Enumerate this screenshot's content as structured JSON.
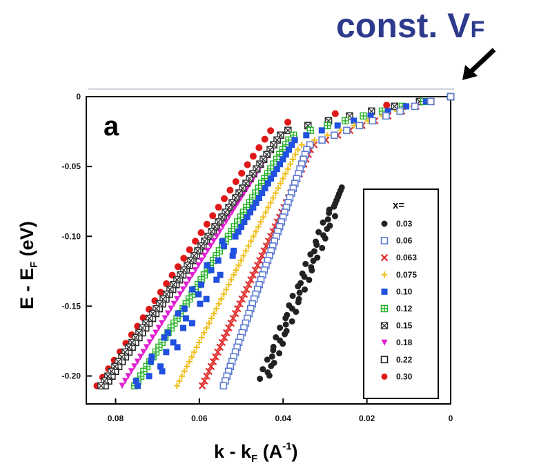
{
  "banner": {
    "text": "const. V",
    "subscript": "F"
  },
  "chart_data": {
    "type": "scatter",
    "panel_label": "a",
    "xlabel": "k - k",
    "xlabel_sub": "F",
    "xlabel_unit_open": " (A",
    "xlabel_sup": "-1",
    "xlabel_unit_close": ")",
    "ylabel": "E - E",
    "ylabel_sub": "F",
    "ylabel_unit": " (eV)",
    "xlim": [
      0.087,
      0
    ],
    "ylim": [
      -0.22,
      0.0
    ],
    "x_ticks": [
      0.08,
      0.06,
      0.04,
      0.02,
      0
    ],
    "x_tick_labels": [
      "0.08",
      "0.06",
      "0.04",
      "0.02",
      "0"
    ],
    "y_ticks": [
      0,
      -0.05,
      -0.1,
      -0.15,
      -0.2
    ],
    "y_tick_labels": [
      "0",
      "-0.05",
      "-0.10",
      "-0.15",
      "-0.20"
    ],
    "legend": {
      "title": "x=",
      "placement": "right"
    },
    "series": [
      {
        "name": "0.03",
        "marker": "filled-circle",
        "color": "#222222",
        "e_start": -0.065,
        "k_start": 0.026,
        "k_end": 0.045
      },
      {
        "name": "0.06",
        "marker": "open-square",
        "color": "#5a78d0",
        "e_start": -0.035,
        "k_start": 0.034,
        "k_end": 0.054
      },
      {
        "name": "0.063",
        "marker": "x",
        "color": "#e03030",
        "e_start": -0.035,
        "k_start": 0.033,
        "k_end": 0.059
      },
      {
        "name": "0.075",
        "marker": "plus",
        "color": "#f0c020",
        "e_start": -0.035,
        "k_start": 0.036,
        "k_end": 0.065
      },
      {
        "name": "0.10",
        "marker": "filled-square",
        "color": "#2050e0",
        "e_start": -0.03,
        "k_start": 0.037,
        "k_end": 0.073
      },
      {
        "name": "0.12",
        "marker": "square-plus",
        "color": "#20b020",
        "e_start": -0.028,
        "k_start": 0.038,
        "k_end": 0.075
      },
      {
        "name": "0.15",
        "marker": "square-x",
        "color": "#333333",
        "e_start": -0.025,
        "k_start": 0.04,
        "k_end": 0.083
      },
      {
        "name": "0.18",
        "marker": "triangle-down",
        "color": "#e020d0",
        "e_start": -0.025,
        "k_start": 0.04,
        "k_end": 0.078
      },
      {
        "name": "0.22",
        "marker": "open-square",
        "color": "#222222",
        "e_start": -0.025,
        "k_start": 0.04,
        "k_end": 0.082
      },
      {
        "name": "0.30",
        "marker": "filled-circle",
        "color": "#e01818",
        "e_start": -0.02,
        "k_start": 0.042,
        "k_end": 0.084
      }
    ]
  }
}
